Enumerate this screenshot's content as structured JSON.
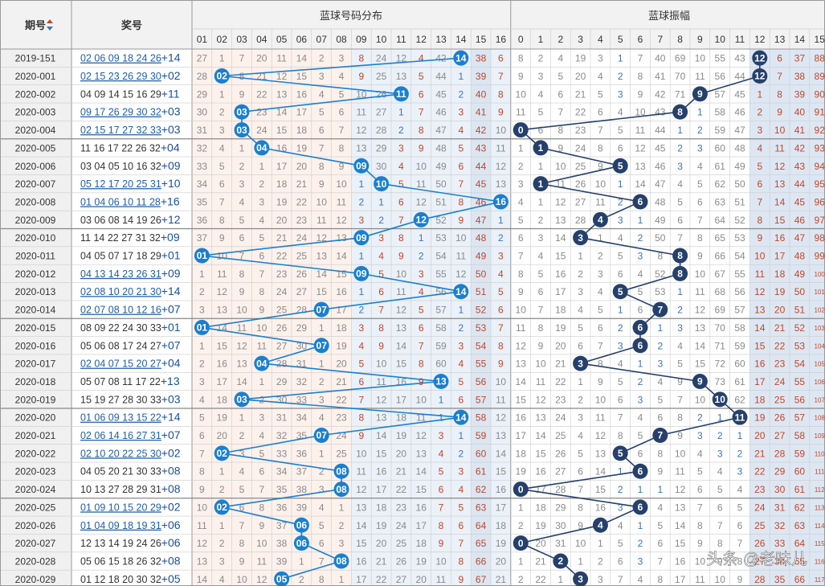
{
  "header": {
    "period_label": "期号",
    "draw_label": "奖号",
    "blue_dist_title": "蓝球号码分布",
    "blue_amp_title": "蓝球振幅",
    "dist_columns": [
      "01",
      "02",
      "03",
      "04",
      "05",
      "06",
      "07",
      "08",
      "09",
      "10",
      "11",
      "12",
      "13",
      "14",
      "15",
      "16"
    ],
    "amp_columns": [
      "0",
      "1",
      "2",
      "3",
      "4",
      "5",
      "6",
      "7",
      "8",
      "9",
      "10",
      "11",
      "12",
      "13",
      "14",
      "15"
    ]
  },
  "rows": [
    {
      "period": "2019-151",
      "red": "02 06 09 18 24 26",
      "blue": 14,
      "draw_suffix": "+14",
      "linked": true,
      "dist": [
        27,
        1,
        7,
        20,
        11,
        14,
        2,
        3,
        8,
        24,
        12,
        4,
        42,
        14,
        38,
        6
      ],
      "amp": [
        8,
        2,
        4,
        19,
        3,
        1,
        7,
        40,
        69,
        10,
        55,
        43,
        12,
        6,
        37,
        88
      ]
    },
    {
      "period": "2020-001",
      "red": "02 15 23 26 29 30",
      "blue": 2,
      "draw_suffix": "+02",
      "linked": true,
      "dist": [
        28,
        2,
        8,
        21,
        12,
        15,
        3,
        4,
        9,
        25,
        13,
        5,
        44,
        1,
        39,
        7
      ],
      "amp": [
        9,
        3,
        5,
        20,
        4,
        2,
        8,
        41,
        70,
        11,
        56,
        44,
        12,
        7,
        38,
        89
      ]
    },
    {
      "period": "2020-002",
      "red": "04 09 14 15 16 29",
      "blue": 11,
      "draw_suffix": "+11",
      "linked": false,
      "dist": [
        29,
        1,
        9,
        22,
        13,
        16,
        4,
        5,
        10,
        26,
        11,
        6,
        45,
        2,
        40,
        8
      ],
      "amp": [
        10,
        4,
        6,
        21,
        5,
        3,
        9,
        42,
        71,
        9,
        57,
        45,
        1,
        8,
        39,
        90
      ]
    },
    {
      "period": "2020-003",
      "red": "09 17 26 29 30 32",
      "blue": 3,
      "draw_suffix": "+03",
      "linked": true,
      "dist": [
        30,
        2,
        3,
        23,
        14,
        17,
        5,
        6,
        11,
        27,
        1,
        7,
        46,
        3,
        41,
        9
      ],
      "amp": [
        11,
        5,
        7,
        22,
        6,
        4,
        10,
        43,
        8,
        1,
        58,
        46,
        2,
        9,
        40,
        91
      ]
    },
    {
      "period": "2020-004",
      "red": "02 15 17 27 32 33",
      "blue": 3,
      "draw_suffix": "+03",
      "linked": true,
      "dist": [
        31,
        3,
        3,
        24,
        15,
        18,
        6,
        7,
        12,
        28,
        2,
        8,
        47,
        4,
        42,
        10
      ],
      "amp": [
        0,
        6,
        8,
        23,
        7,
        5,
        11,
        44,
        1,
        2,
        59,
        47,
        3,
        10,
        41,
        92
      ]
    },
    {
      "period": "2020-005",
      "red": "11 16 17 22 26 32",
      "blue": 4,
      "draw_suffix": "+04",
      "linked": false,
      "dist": [
        32,
        4,
        1,
        4,
        16,
        19,
        7,
        8,
        13,
        29,
        3,
        9,
        48,
        5,
        43,
        11
      ],
      "amp": [
        1,
        1,
        9,
        24,
        8,
        6,
        12,
        45,
        2,
        3,
        60,
        48,
        4,
        11,
        42,
        93
      ]
    },
    {
      "period": "2020-006",
      "red": "03 04 05 10 16 32",
      "blue": 9,
      "draw_suffix": "+09",
      "linked": false,
      "dist": [
        33,
        5,
        2,
        1,
        17,
        20,
        8,
        9,
        9,
        30,
        4,
        10,
        49,
        6,
        44,
        12
      ],
      "amp": [
        2,
        1,
        10,
        25,
        9,
        5,
        13,
        46,
        3,
        4,
        61,
        49,
        5,
        12,
        43,
        94
      ]
    },
    {
      "period": "2020-007",
      "red": "05 12 17 20 25 31",
      "blue": 10,
      "draw_suffix": "+10",
      "linked": true,
      "dist": [
        34,
        6,
        3,
        2,
        18,
        21,
        9,
        10,
        1,
        10,
        5,
        11,
        50,
        7,
        45,
        13
      ],
      "amp": [
        3,
        1,
        11,
        26,
        10,
        1,
        14,
        47,
        4,
        5,
        62,
        50,
        6,
        13,
        44,
        95
      ]
    },
    {
      "period": "2020-008",
      "red": "01 04 06 10 11 28",
      "blue": 16,
      "draw_suffix": "+16",
      "linked": true,
      "dist": [
        35,
        7,
        4,
        3,
        19,
        22,
        10,
        11,
        2,
        1,
        6,
        12,
        51,
        8,
        46,
        16
      ],
      "amp": [
        4,
        1,
        12,
        27,
        11,
        2,
        6,
        48,
        5,
        6,
        63,
        51,
        7,
        14,
        45,
        96
      ]
    },
    {
      "period": "2020-009",
      "red": "03 06 08 14 19 26",
      "blue": 12,
      "draw_suffix": "+12",
      "linked": false,
      "dist": [
        36,
        8,
        5,
        4,
        20,
        23,
        11,
        12,
        3,
        2,
        7,
        12,
        52,
        9,
        47,
        1
      ],
      "amp": [
        5,
        2,
        13,
        28,
        4,
        3,
        1,
        49,
        6,
        7,
        64,
        52,
        8,
        15,
        46,
        97
      ]
    },
    {
      "period": "2020-010",
      "red": "11 14 22 27 31 32",
      "blue": 9,
      "draw_suffix": "+09",
      "linked": false,
      "dist": [
        37,
        9,
        6,
        5,
        21,
        24,
        12,
        13,
        9,
        3,
        8,
        1,
        53,
        10,
        48,
        2
      ],
      "amp": [
        6,
        3,
        14,
        3,
        1,
        4,
        2,
        50,
        7,
        8,
        65,
        53,
        9,
        16,
        47,
        98
      ]
    },
    {
      "period": "2020-011",
      "red": "04 05 07 17 18 29",
      "blue": 1,
      "draw_suffix": "+01",
      "linked": false,
      "dist": [
        1,
        10,
        7,
        6,
        22,
        25,
        13,
        14,
        1,
        4,
        9,
        2,
        54,
        11,
        49,
        3
      ],
      "amp": [
        7,
        4,
        15,
        1,
        2,
        5,
        3,
        8,
        8,
        9,
        66,
        54,
        10,
        17,
        48,
        99
      ]
    },
    {
      "period": "2020-012",
      "red": "04 13 14 23 26 31",
      "blue": 9,
      "draw_suffix": "+09",
      "linked": true,
      "dist": [
        1,
        11,
        8,
        7,
        23,
        26,
        14,
        15,
        9,
        5,
        10,
        3,
        55,
        12,
        50,
        4
      ],
      "amp": [
        8,
        5,
        16,
        2,
        3,
        6,
        4,
        52,
        8,
        10,
        67,
        55,
        11,
        18,
        49,
        100
      ]
    },
    {
      "period": "2020-013",
      "red": "02 08 10 20 21 30",
      "blue": 14,
      "draw_suffix": "+14",
      "linked": true,
      "dist": [
        2,
        12,
        9,
        8,
        24,
        27,
        15,
        16,
        1,
        6,
        11,
        4,
        56,
        14,
        51,
        5
      ],
      "amp": [
        9,
        6,
        17,
        3,
        4,
        5,
        5,
        53,
        1,
        11,
        68,
        56,
        12,
        19,
        50,
        101
      ]
    },
    {
      "period": "2020-014",
      "red": "02 07 08 10 12 16",
      "blue": 7,
      "draw_suffix": "+07",
      "linked": true,
      "dist": [
        3,
        13,
        10,
        9,
        25,
        28,
        7,
        17,
        2,
        7,
        12,
        5,
        57,
        1,
        52,
        6
      ],
      "amp": [
        10,
        7,
        18,
        4,
        5,
        1,
        6,
        7,
        2,
        12,
        69,
        57,
        13,
        20,
        51,
        102
      ]
    },
    {
      "period": "2020-015",
      "red": "08 09 22 24 30 33",
      "blue": 1,
      "draw_suffix": "+01",
      "linked": false,
      "dist": [
        1,
        14,
        11,
        10,
        26,
        29,
        1,
        18,
        3,
        8,
        13,
        6,
        58,
        2,
        53,
        7
      ],
      "amp": [
        11,
        8,
        19,
        5,
        6,
        2,
        6,
        1,
        3,
        13,
        70,
        58,
        14,
        21,
        52,
        103
      ]
    },
    {
      "period": "2020-016",
      "red": "05 06 08 17 24 27",
      "blue": 7,
      "draw_suffix": "+07",
      "linked": false,
      "dist": [
        1,
        15,
        12,
        11,
        27,
        30,
        7,
        19,
        4,
        9,
        14,
        7,
        59,
        3,
        54,
        8
      ],
      "amp": [
        12,
        9,
        20,
        6,
        7,
        3,
        6,
        2,
        4,
        14,
        71,
        59,
        15,
        22,
        53,
        104
      ]
    },
    {
      "period": "2020-017",
      "red": "02 04 07 15 20 27",
      "blue": 4,
      "draw_suffix": "+04",
      "linked": true,
      "dist": [
        2,
        16,
        13,
        4,
        28,
        31,
        1,
        20,
        5,
        10,
        15,
        8,
        60,
        4,
        55,
        9
      ],
      "amp": [
        13,
        10,
        21,
        3,
        8,
        4,
        1,
        3,
        5,
        15,
        72,
        60,
        16,
        23,
        54,
        105
      ]
    },
    {
      "period": "2020-018",
      "red": "05 07 08 11 17 22",
      "blue": 13,
      "draw_suffix": "+13",
      "linked": false,
      "dist": [
        3,
        17,
        14,
        1,
        29,
        32,
        2,
        21,
        6,
        11,
        16,
        9,
        13,
        5,
        56,
        10
      ],
      "amp": [
        14,
        11,
        22,
        1,
        9,
        5,
        2,
        4,
        9,
        16,
        73,
        61,
        17,
        24,
        55,
        106
      ]
    },
    {
      "period": "2020-019",
      "red": "15 19 27 28 30 33",
      "blue": 3,
      "draw_suffix": "+03",
      "linked": false,
      "dist": [
        4,
        18,
        3,
        2,
        30,
        33,
        3,
        22,
        7,
        12,
        17,
        10,
        1,
        6,
        57,
        11
      ],
      "amp": [
        15,
        12,
        23,
        2,
        10,
        6,
        3,
        5,
        7,
        10,
        62,
        62,
        18,
        25,
        56,
        107
      ]
    },
    {
      "period": "2020-020",
      "red": "01 06 09 13 15 22",
      "blue": 14,
      "draw_suffix": "+14",
      "linked": true,
      "dist": [
        5,
        19,
        1,
        3,
        31,
        34,
        4,
        23,
        8,
        13,
        18,
        11,
        1,
        14,
        58,
        12
      ],
      "amp": [
        16,
        13,
        24,
        3,
        11,
        7,
        4,
        6,
        8,
        2,
        1,
        11,
        19,
        26,
        57,
        108
      ]
    },
    {
      "period": "2020-021",
      "red": "02 06 14 16 27 31",
      "blue": 7,
      "draw_suffix": "+07",
      "linked": true,
      "dist": [
        6,
        20,
        2,
        4,
        32,
        35,
        7,
        24,
        9,
        14,
        19,
        12,
        3,
        1,
        59,
        13
      ],
      "amp": [
        17,
        14,
        25,
        4,
        12,
        8,
        5,
        7,
        9,
        3,
        2,
        1,
        20,
        27,
        58,
        109
      ]
    },
    {
      "period": "2020-022",
      "red": "02 10 20 22 25 30",
      "blue": 2,
      "draw_suffix": "+02",
      "linked": true,
      "dist": [
        7,
        2,
        3,
        5,
        33,
        36,
        1,
        25,
        10,
        15,
        20,
        13,
        4,
        2,
        60,
        14
      ],
      "amp": [
        18,
        15,
        26,
        5,
        13,
        5,
        6,
        8,
        10,
        4,
        3,
        2,
        21,
        28,
        59,
        110
      ]
    },
    {
      "period": "2020-023",
      "red": "04 05 20 21 30 33",
      "blue": 8,
      "draw_suffix": "+08",
      "linked": false,
      "dist": [
        8,
        1,
        4,
        6,
        34,
        37,
        2,
        8,
        11,
        16,
        21,
        14,
        5,
        3,
        61,
        15
      ],
      "amp": [
        19,
        16,
        27,
        6,
        14,
        1,
        6,
        9,
        11,
        5,
        4,
        3,
        22,
        29,
        60,
        111
      ]
    },
    {
      "period": "2020-024",
      "red": "10 13 27 28 29 31",
      "blue": 8,
      "draw_suffix": "+08",
      "linked": false,
      "dist": [
        9,
        2,
        5,
        7,
        35,
        38,
        3,
        8,
        12,
        17,
        22,
        15,
        6,
        4,
        62,
        16
      ],
      "amp": [
        0,
        17,
        28,
        7,
        15,
        2,
        1,
        1,
        12,
        6,
        5,
        4,
        23,
        30,
        61,
        112
      ]
    },
    {
      "period": "2020-025",
      "red": "01 09 10 15 20 29",
      "blue": 2,
      "draw_suffix": "+02",
      "linked": true,
      "dist": [
        10,
        2,
        6,
        8,
        36,
        39,
        4,
        1,
        13,
        18,
        23,
        16,
        7,
        5,
        63,
        17
      ],
      "amp": [
        1,
        18,
        29,
        8,
        16,
        3,
        6,
        4,
        13,
        7,
        6,
        5,
        24,
        31,
        62,
        113
      ]
    },
    {
      "period": "2020-026",
      "red": "01 04 09 18 19 31",
      "blue": 6,
      "draw_suffix": "+06",
      "linked": true,
      "dist": [
        11,
        1,
        7,
        9,
        37,
        6,
        5,
        2,
        14,
        19,
        24,
        17,
        8,
        6,
        64,
        18
      ],
      "amp": [
        2,
        19,
        30,
        9,
        4,
        4,
        1,
        5,
        14,
        8,
        7,
        6,
        25,
        32,
        63,
        114
      ]
    },
    {
      "period": "2020-027",
      "red": "12 13 14 19 24 26",
      "blue": 6,
      "draw_suffix": "+06",
      "linked": false,
      "dist": [
        12,
        2,
        8,
        10,
        38,
        6,
        6,
        3,
        15,
        20,
        25,
        18,
        9,
        7,
        65,
        19
      ],
      "amp": [
        0,
        20,
        31,
        10,
        1,
        5,
        2,
        6,
        15,
        9,
        8,
        7,
        26,
        33,
        64,
        115
      ]
    },
    {
      "period": "2020-028",
      "red": "05 06 15 18 26 32",
      "blue": 8,
      "draw_suffix": "+08",
      "linked": false,
      "dist": [
        13,
        3,
        9,
        11,
        39,
        1,
        7,
        8,
        16,
        21,
        26,
        19,
        10,
        8,
        66,
        20
      ],
      "amp": [
        1,
        21,
        2,
        1,
        2,
        6,
        3,
        7,
        16,
        10,
        9,
        8,
        27,
        34,
        65,
        116
      ]
    },
    {
      "period": "2020-029",
      "red": "01 12 18 20 30 32",
      "blue": 5,
      "draw_suffix": "+05",
      "linked": false,
      "dist": [
        14,
        4,
        10,
        12,
        5,
        2,
        8,
        1,
        17,
        22,
        27,
        20,
        11,
        9,
        67,
        21
      ],
      "amp": [
        2,
        22,
        1,
        3,
        3,
        7,
        4,
        8,
        17,
        11,
        10,
        9,
        28,
        35,
        66,
        117
      ]
    }
  ],
  "watermark": "头条 @老味儿",
  "colors": {
    "grid": "#cccccc",
    "group_line": "#888888",
    "header_bg": "#f2f2f2",
    "period_bg": "#f0f0f0",
    "dist_bg_low": "#fdf1ec",
    "dist_bg_high": "#eaf1f8",
    "amp_bg": "#eef3fa",
    "amp_bg_alt": "#dde7f3",
    "omit_gray": "#8a8a8a",
    "omit_red": "#c0472b",
    "omit_blue": "#3d73b5",
    "blue_ball": "#1a7fd0",
    "amp_ball": "#25406a",
    "link_blue": "#1f5fa8",
    "suffix_blue": "#1a4f9a"
  }
}
